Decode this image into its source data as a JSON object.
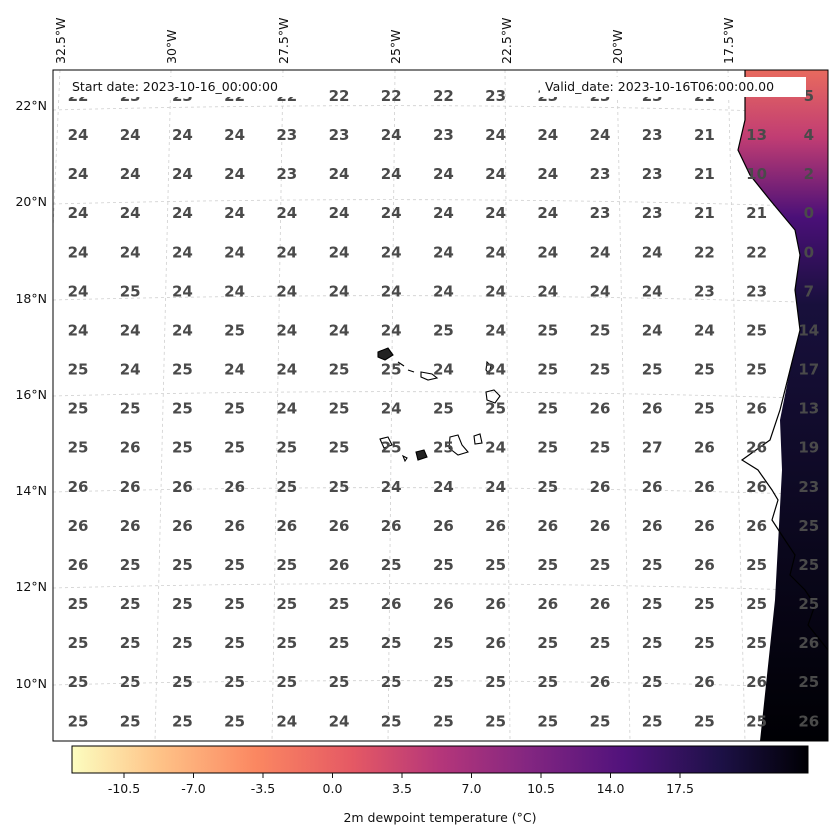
{
  "map": {
    "start_label": "Start date: 2023-10-16_00:00:00",
    "valid_label": "Valid_date: 2023-10-16T06:00:00.00",
    "lon_labels": [
      "32.5°W",
      "30°W",
      "27.5°W",
      "25°W",
      "22.5°W",
      "20°W",
      "17.5°W"
    ],
    "lat_labels": [
      "22°N",
      "20°N",
      "18°N",
      "16°N",
      "14°N",
      "12°N",
      "10°N"
    ],
    "colorbar_label": "2m dewpoint temperature ($^\\circ$C)",
    "colorbar_label_display": "2m dewpoint temperature (°C)",
    "colorbar_ticks": [
      "-10.5",
      "-7.0",
      "-3.5",
      "0.0",
      "3.5",
      "7.0",
      "10.5",
      "14.0",
      "17.5"
    ],
    "colormap": "magma_r",
    "grid_values": [
      [
        "22",
        "23",
        "23",
        "22",
        "22",
        "22",
        "22",
        "22",
        "23",
        "23",
        "23",
        "23",
        "21",
        "",
        "5"
      ],
      [
        "24",
        "24",
        "24",
        "24",
        "23",
        "23",
        "24",
        "23",
        "24",
        "24",
        "24",
        "23",
        "21",
        "13",
        "4"
      ],
      [
        "24",
        "24",
        "24",
        "24",
        "23",
        "24",
        "24",
        "24",
        "24",
        "24",
        "23",
        "23",
        "21",
        "10",
        "2"
      ],
      [
        "24",
        "24",
        "24",
        "24",
        "24",
        "24",
        "24",
        "24",
        "24",
        "24",
        "23",
        "23",
        "21",
        "21",
        "0"
      ],
      [
        "24",
        "24",
        "24",
        "24",
        "24",
        "24",
        "24",
        "24",
        "24",
        "24",
        "24",
        "24",
        "22",
        "22",
        "0"
      ],
      [
        "24",
        "25",
        "24",
        "24",
        "24",
        "24",
        "24",
        "24",
        "24",
        "24",
        "24",
        "24",
        "23",
        "23",
        "7"
      ],
      [
        "24",
        "24",
        "24",
        "25",
        "24",
        "24",
        "24",
        "25",
        "24",
        "25",
        "25",
        "24",
        "24",
        "25",
        "14"
      ],
      [
        "25",
        "24",
        "25",
        "24",
        "24",
        "25",
        "25",
        "24",
        "24",
        "25",
        "25",
        "25",
        "25",
        "25",
        "17"
      ],
      [
        "25",
        "25",
        "25",
        "25",
        "24",
        "25",
        "24",
        "25",
        "25",
        "25",
        "26",
        "26",
        "25",
        "26",
        "13"
      ],
      [
        "25",
        "26",
        "25",
        "25",
        "25",
        "25",
        "25",
        "25",
        "24",
        "25",
        "25",
        "27",
        "26",
        "26",
        "19"
      ],
      [
        "26",
        "26",
        "26",
        "26",
        "25",
        "25",
        "24",
        "24",
        "24",
        "25",
        "26",
        "26",
        "26",
        "26",
        "23"
      ],
      [
        "26",
        "26",
        "26",
        "26",
        "26",
        "26",
        "26",
        "26",
        "26",
        "26",
        "26",
        "26",
        "26",
        "26",
        "25"
      ],
      [
        "26",
        "25",
        "25",
        "25",
        "25",
        "26",
        "25",
        "25",
        "25",
        "25",
        "25",
        "25",
        "26",
        "25",
        "25"
      ],
      [
        "25",
        "25",
        "25",
        "25",
        "25",
        "25",
        "26",
        "26",
        "26",
        "26",
        "26",
        "25",
        "25",
        "25",
        "25"
      ],
      [
        "25",
        "25",
        "25",
        "25",
        "25",
        "25",
        "25",
        "25",
        "26",
        "25",
        "25",
        "25",
        "25",
        "25",
        "26"
      ],
      [
        "25",
        "25",
        "25",
        "25",
        "25",
        "25",
        "25",
        "25",
        "25",
        "25",
        "26",
        "25",
        "26",
        "26",
        "25"
      ],
      [
        "25",
        "25",
        "25",
        "25",
        "24",
        "24",
        "25",
        "25",
        "25",
        "25",
        "25",
        "25",
        "25",
        "25",
        "26"
      ]
    ]
  }
}
